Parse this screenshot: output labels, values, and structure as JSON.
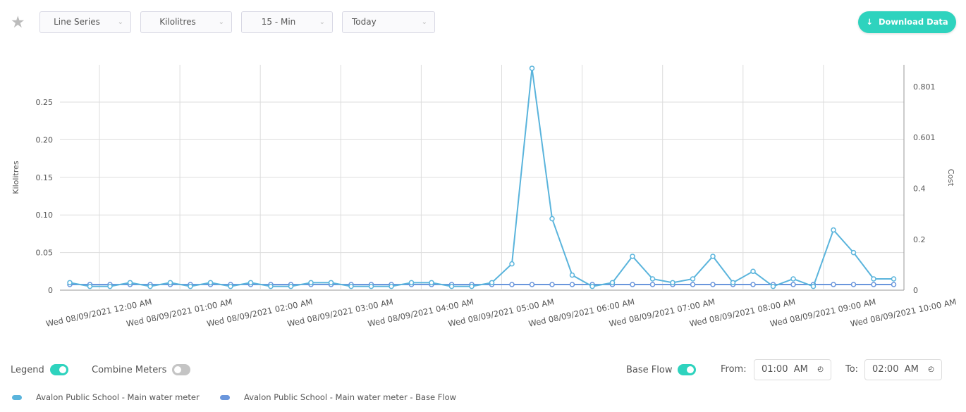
{
  "toolbar": {
    "favorite_icon": "star-icon",
    "chart_type": "Line Series",
    "unit": "Kilolitres",
    "interval": "15 - Min",
    "range": "Today",
    "download_label": "Download Data"
  },
  "controls": {
    "legend_label": "Legend",
    "legend_on": true,
    "combine_label": "Combine Meters",
    "combine_on": false,
    "baseflow_label": "Base Flow",
    "baseflow_on": true,
    "from_label": "From:",
    "from_value": "01:00  AM",
    "to_label": "To:",
    "to_value": "02:00  AM"
  },
  "chart_data": {
    "type": "line",
    "ylabel": "Kilolitres",
    "y2label": "Cost",
    "ylim": [
      0,
      0.3
    ],
    "yticks": [
      "0",
      "0.05",
      "0.10",
      "0.15",
      "0.20",
      "0.25"
    ],
    "y2ticks": [
      "0",
      "0.2",
      "0.4",
      "0.601",
      "0.801"
    ],
    "y2values": [
      0,
      0.2,
      0.4,
      0.601,
      0.801
    ],
    "y2lim": [
      0,
      0.885
    ],
    "xticks": [
      "Wed 08/09/2021 12:00 AM",
      "Wed 08/09/2021 01:00 AM",
      "Wed 08/09/2021 02:00 AM",
      "Wed 08/09/2021 03:00 AM",
      "Wed 08/09/2021 04:00 AM",
      "Wed 08/09/2021 05:00 AM",
      "Wed 08/09/2021 06:00 AM",
      "Wed 08/09/2021 07:00 AM",
      "Wed 08/09/2021 08:00 AM",
      "Wed 08/09/2021 09:00 AM",
      "Wed 08/09/2021 10:00 AM"
    ],
    "grid": true,
    "legend_position": "bottom-left",
    "series": [
      {
        "name": "Avalon Public School - Main water meter",
        "color": "#5ab4dc",
        "values": [
          0.01,
          0.005,
          0.005,
          0.01,
          0.005,
          0.01,
          0.005,
          0.01,
          0.005,
          0.01,
          0.005,
          0.005,
          0.01,
          0.01,
          0.005,
          0.005,
          0.005,
          0.01,
          0.01,
          0.005,
          0.005,
          0.01,
          0.035,
          0.295,
          0.095,
          0.02,
          0.005,
          0.01,
          0.045,
          0.015,
          0.01,
          0.015,
          0.045,
          0.01,
          0.025,
          0.005,
          0.015,
          0.005,
          0.08,
          0.05,
          0.015,
          0.015
        ]
      },
      {
        "name": "Avalon Public School - Main water meter - Base Flow",
        "color": "#6a96dc",
        "values": [
          0.0075,
          0.0075,
          0.0075,
          0.0075,
          0.0075,
          0.0075,
          0.0075,
          0.0075,
          0.0075,
          0.0075,
          0.0075,
          0.0075,
          0.0075,
          0.0075,
          0.0075,
          0.0075,
          0.0075,
          0.0075,
          0.0075,
          0.0075,
          0.0075,
          0.0075,
          0.0075,
          0.0075,
          0.0075,
          0.0075,
          0.0075,
          0.0075,
          0.0075,
          0.0075,
          0.0075,
          0.0075,
          0.0075,
          0.0075,
          0.0075,
          0.0075,
          0.0075,
          0.0075,
          0.0075,
          0.0075,
          0.0075,
          0.0075
        ]
      }
    ]
  }
}
